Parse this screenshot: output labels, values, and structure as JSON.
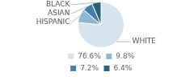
{
  "chart_data": {
    "type": "pie",
    "categories": [
      "WHITE",
      "HISPANIC",
      "ASIAN",
      "BLACK"
    ],
    "values": [
      76.6,
      9.8,
      7.2,
      6.4
    ],
    "value_labels": [
      "76.6%",
      "9.8%",
      "7.2%",
      "6.4%"
    ],
    "colors": [
      "#d6e4f0",
      "#8fb8d0",
      "#4a7fa5",
      "#2c5f7a"
    ],
    "legend": "bottom"
  }
}
